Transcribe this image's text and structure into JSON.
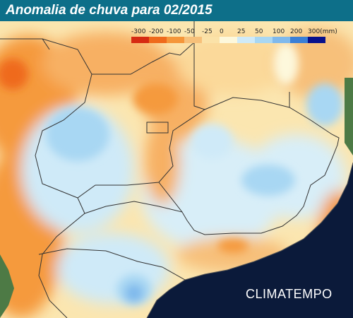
{
  "title": "Anomalia de chuva para 02/2015",
  "legend": {
    "labels": [
      "-300",
      "-200",
      "-100",
      "-50",
      "-25",
      "0",
      "25",
      "50",
      "100",
      "200",
      "300(mm)"
    ],
    "colors": [
      "#d62a12",
      "#ef6a1c",
      "#f5963a",
      "#f7c07a",
      "#fbe2a8",
      "#fdf8dc",
      "#cfeaf8",
      "#a8d7f3",
      "#7fb9ec",
      "#3b7fd6",
      "#08108c"
    ]
  },
  "brand": "CLIMATEMPO",
  "map_colors": {
    "ocean": "#0b1a3a",
    "border": "#333333",
    "land_outside": "#4d7a45"
  }
}
